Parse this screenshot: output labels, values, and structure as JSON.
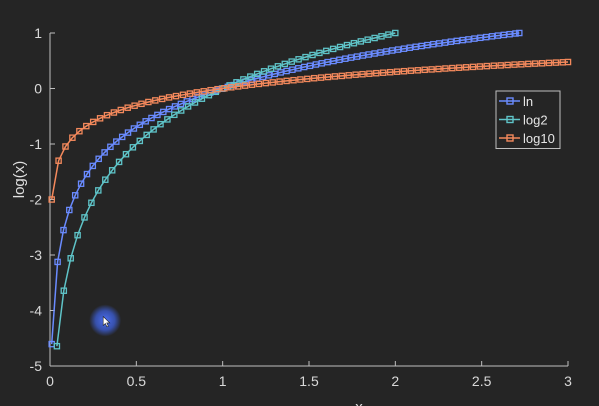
{
  "chart_data": {
    "type": "line",
    "title": "",
    "xlabel": "x",
    "ylabel": "log(x)",
    "xlim": [
      0,
      3
    ],
    "ylim": [
      -5,
      1
    ],
    "xticks": [
      0,
      0.5,
      1,
      1.5,
      2,
      2.5,
      3
    ],
    "xtick_labels": [
      "0",
      "0.5",
      "1",
      "1.5",
      "2",
      "2.5",
      "3"
    ],
    "yticks": [
      -5,
      -4,
      -3,
      -2,
      -1,
      0,
      1
    ],
    "ytick_labels": [
      "-5",
      "-4",
      "-3",
      "-2",
      "-1",
      "0",
      "1"
    ],
    "grid": false,
    "legend_position": "right",
    "background": "#252525",
    "series": [
      {
        "name": "ln",
        "color": "#6A8BFF",
        "marker": "square",
        "function": "ln",
        "x_start": 0.01,
        "x_end": 2.718,
        "x_step": 0.034,
        "sample_points": [
          [
            0.01,
            -4.61
          ],
          [
            0.5,
            -0.69
          ],
          [
            1,
            0
          ],
          [
            1.5,
            0.41
          ],
          [
            2,
            0.69
          ],
          [
            2.718,
            1.0
          ]
        ]
      },
      {
        "name": "log2",
        "color": "#5FC4C8",
        "marker": "square",
        "function": "log2",
        "x_start": 0.04,
        "x_end": 2.0,
        "x_step": 0.04,
        "sample_points": [
          [
            0.04,
            -4.64
          ],
          [
            0.5,
            -1
          ],
          [
            1,
            0
          ],
          [
            1.5,
            0.58
          ],
          [
            2,
            1.0
          ]
        ]
      },
      {
        "name": "log10",
        "color": "#F4895C",
        "marker": "square",
        "function": "log10",
        "x_start": 0.01,
        "x_end": 3.0,
        "x_step": 0.04,
        "sample_points": [
          [
            0.01,
            -2
          ],
          [
            0.5,
            -0.3
          ],
          [
            1,
            0
          ],
          [
            2,
            0.3
          ],
          [
            3,
            0.48
          ]
        ]
      }
    ]
  },
  "cursor": {
    "x": 0.25,
    "y": -4.0,
    "color": "#3D5FD8"
  }
}
